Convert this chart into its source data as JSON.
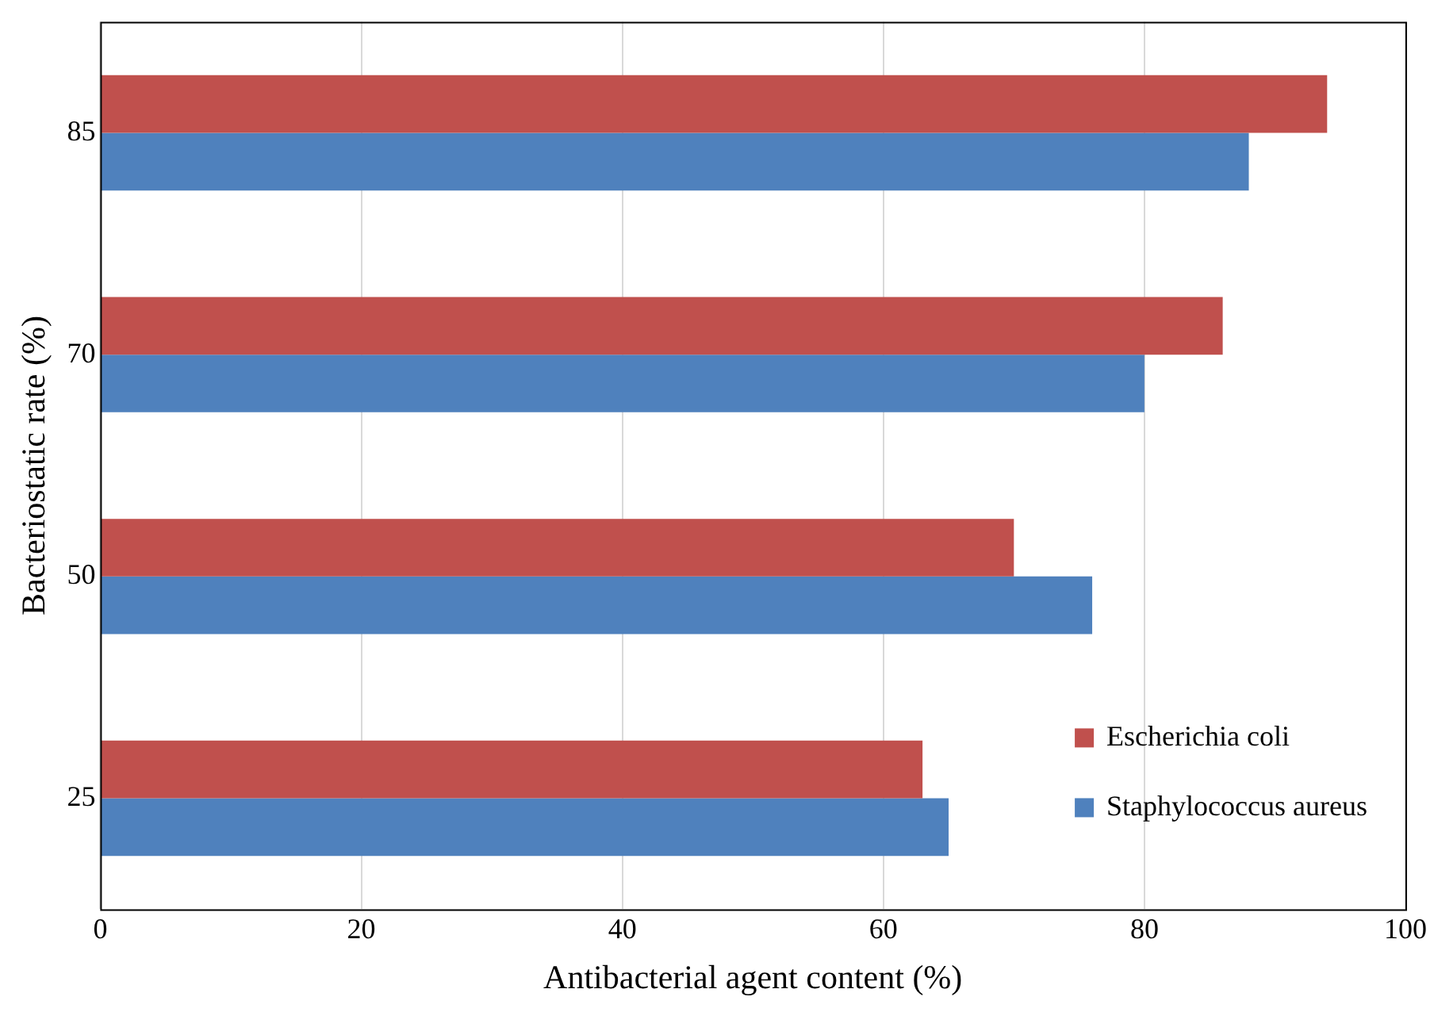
{
  "chart_data": {
    "type": "bar",
    "orientation": "horizontal",
    "xlabel": "Antibacterial agent content (%)",
    "ylabel": "Bacteriostatic rate (%)",
    "categories": [
      "85",
      "70",
      "50",
      "25"
    ],
    "series": [
      {
        "name": "Escherichia coli",
        "color": "#c0504d",
        "values": [
          94,
          86,
          70,
          63
        ]
      },
      {
        "name": "Staphylococcus aureus",
        "color": "#4f81bd",
        "values": [
          88,
          80,
          76,
          65
        ]
      }
    ],
    "xlim": [
      0,
      100
    ],
    "xticks": [
      0,
      20,
      40,
      60,
      80,
      100
    ],
    "grid": "x",
    "legend": "bottom right"
  }
}
